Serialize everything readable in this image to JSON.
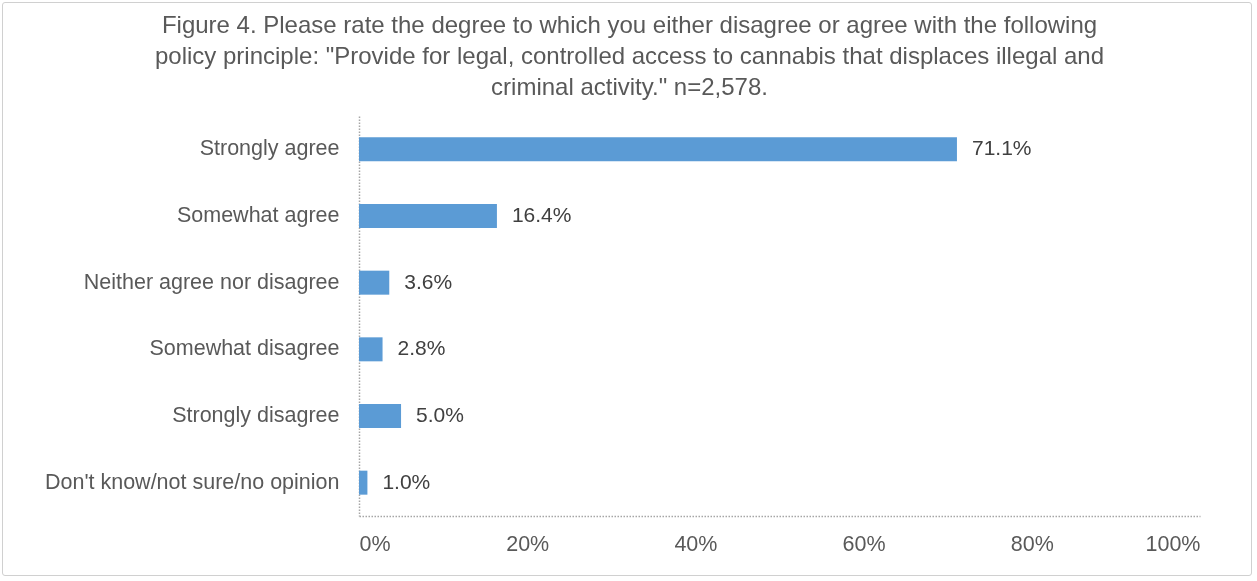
{
  "chart_data": {
    "type": "bar",
    "orientation": "horizontal",
    "title": "Figure 4. Please rate the degree to which you either disagree or agree with the following policy principle: \"Provide for legal, controlled access to cannabis that displaces illegal and criminal activity.\" n=2,578.",
    "categories": [
      "Strongly agree",
      "Somewhat agree",
      "Neither agree nor disagree",
      "Somewhat disagree",
      "Strongly disagree",
      "Don't know/not sure/no opinion"
    ],
    "values": [
      71.1,
      16.4,
      3.6,
      2.8,
      5.0,
      1.0
    ],
    "value_labels": [
      "71.1%",
      "16.4%",
      "3.6%",
      "2.8%",
      "5.0%",
      "1.0%"
    ],
    "color": "#5b9bd5",
    "xlim": [
      0,
      100
    ],
    "xticks": [
      {
        "value": 0,
        "label": "0%"
      },
      {
        "value": 20,
        "label": "20%"
      },
      {
        "value": 40,
        "label": "40%"
      },
      {
        "value": 60,
        "label": "60%"
      },
      {
        "value": 80,
        "label": "80%"
      },
      {
        "value": 100,
        "label": "100%"
      }
    ],
    "grid": false
  }
}
